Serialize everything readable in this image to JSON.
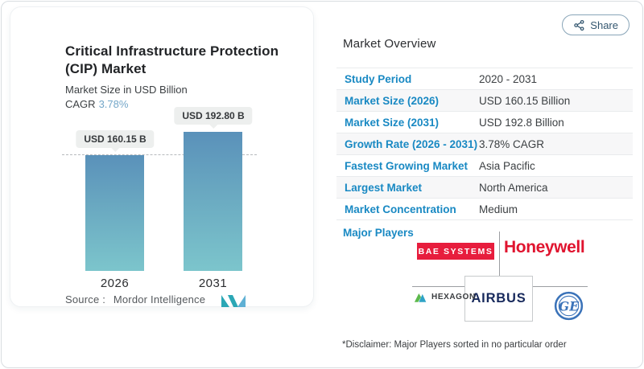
{
  "share_button": {
    "label": "Share"
  },
  "chart_card": {
    "title_line1": "Critical Infrastructure Protection",
    "title_line2": "(CIP) Market",
    "subtitle": "Market Size in USD Billion",
    "cagr_label": "CAGR",
    "cagr_value": "3.78%",
    "source_label": "Source :",
    "source_name": "Mordor Intelligence"
  },
  "chart_data": {
    "type": "bar",
    "title": "Critical Infrastructure Protection (CIP) Market",
    "subtitle": "Market Size in USD Billion",
    "categories": [
      "2026",
      "2031"
    ],
    "values": [
      160.15,
      192.8
    ],
    "bar_labels": [
      "USD 160.15 B",
      "USD 192.80 B"
    ],
    "unit": "USD Billion",
    "cagr_percent": 3.78,
    "reference_line_value": 160.15,
    "ylim": [
      0,
      200
    ],
    "grid": false,
    "legend": "none",
    "bar_color_top": "#5a91ba",
    "bar_color_bottom": "#7cc5cc"
  },
  "overview": {
    "heading": "Market Overview",
    "rows": [
      {
        "label": "Study Period",
        "value": "2020 - 2031"
      },
      {
        "label": "Market Size (2026)",
        "value": "USD 160.15 Billion"
      },
      {
        "label": "Market Size (2031)",
        "value": "USD 192.8 Billion"
      },
      {
        "label": "Growth Rate (2026 - 2031)",
        "value": "3.78% CAGR"
      },
      {
        "label": "Fastest Growing Market",
        "value": "Asia Pacific"
      },
      {
        "label": "Largest Market",
        "value": "North America"
      },
      {
        "label": "Market Concentration",
        "value": "Medium"
      }
    ],
    "major_players_label": "Major Players",
    "major_players": [
      "BAE Systems",
      "Honeywell",
      "Hexagon",
      "Airbus",
      "GE"
    ],
    "disclaimer": "*Disclaimer: Major Players sorted in no particular order"
  },
  "logos": {
    "bae_text": "BAE SYSTEMS",
    "honeywell_text": "Honeywell",
    "hexagon_text": "HEXAGON",
    "airbus_text": "AIRBUS",
    "ge_text": "GE"
  },
  "colors": {
    "label_blue": "#1989c3",
    "cagr_blue": "#74a7c9",
    "bar_top": "#5a91ba",
    "bar_bottom": "#7cc5cc",
    "bae_red": "#e71d3d",
    "honeywell_red": "#e0142f",
    "airbus_navy": "#17295c",
    "ge_blue": "#3b73b9",
    "share_border": "#89a5b8",
    "row_stripe": "#f7f7f8"
  }
}
